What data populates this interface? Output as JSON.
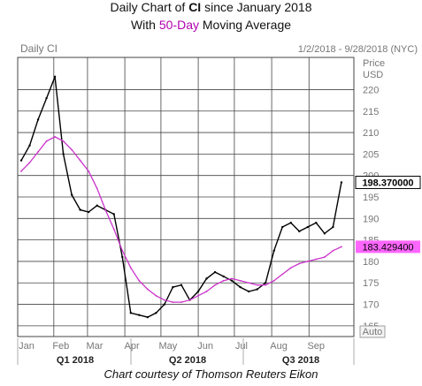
{
  "title_line1": {
    "prefix": "Daily Chart of ",
    "ticker": "CI",
    "suffix": " since January 2018"
  },
  "title_line2": {
    "prefix": "With ",
    "ma_label": "50-Day",
    "suffix": " Moving Average"
  },
  "credit": "Chart courtesy of Thomson Reuters Eikon",
  "colors": {
    "price": "#000000",
    "ma": "#cc33cc",
    "last_box": "#ffffff",
    "ma_box": "#ff66ff",
    "grid": "#444444",
    "axis_text": "#777777"
  },
  "chart_data": {
    "type": "line",
    "chart_label": "Daily CI",
    "date_range": "1/2/2018 - 9/28/2018 (NYC)",
    "y_unit": "Price",
    "y_currency": "USD",
    "yticks": [
      165,
      170,
      175,
      180,
      185,
      190,
      195,
      200,
      205,
      210,
      215,
      220
    ],
    "ylim": [
      162.5,
      227.5
    ],
    "month_labels": [
      "Jan",
      "Feb",
      "Mar",
      "Apr",
      "May",
      "Jun",
      "Jul",
      "Aug",
      "Sep"
    ],
    "quarter_labels": [
      "Q1 2018",
      "Q2 2018",
      "Q3 2018"
    ],
    "last_price": "198.370000",
    "ma_value": "183.429400",
    "autoscale_label": "Auto",
    "x": [
      "2018-01-02",
      "2018-01-09",
      "2018-01-16",
      "2018-01-23",
      "2018-01-30",
      "2018-02-06",
      "2018-02-13",
      "2018-02-20",
      "2018-02-27",
      "2018-03-06",
      "2018-03-13",
      "2018-03-20",
      "2018-03-27",
      "2018-04-03",
      "2018-04-10",
      "2018-04-17",
      "2018-04-24",
      "2018-05-01",
      "2018-05-08",
      "2018-05-15",
      "2018-05-22",
      "2018-05-29",
      "2018-06-05",
      "2018-06-12",
      "2018-06-19",
      "2018-06-26",
      "2018-07-03",
      "2018-07-10",
      "2018-07-17",
      "2018-07-24",
      "2018-07-31",
      "2018-08-07",
      "2018-08-14",
      "2018-08-21",
      "2018-08-28",
      "2018-09-04",
      "2018-09-11",
      "2018-09-18",
      "2018-09-25"
    ],
    "series": [
      {
        "values": [
          203.5,
          207.0,
          213.0,
          218.0,
          223.0,
          205.0,
          195.5,
          192.0,
          191.5,
          193.0,
          192.0,
          191.0,
          181.0,
          168.0,
          167.5,
          167.0,
          168.0,
          170.0,
          174.0,
          174.5,
          171.0,
          173.0,
          176.0,
          177.5,
          176.5,
          175.5,
          174.0,
          173.0,
          173.5,
          175.0,
          182.5,
          188.0,
          189.0,
          187.0,
          188.0,
          189.0,
          186.5,
          188.0,
          198.4
        ]
      },
      {
        "name": "50-Day",
        "values": [
          201.0,
          203.0,
          205.5,
          208.0,
          209.0,
          208.0,
          206.0,
          203.5,
          201.0,
          197.0,
          192.0,
          187.5,
          182.5,
          178.5,
          175.5,
          173.5,
          172.0,
          171.0,
          170.5,
          170.5,
          171.0,
          172.0,
          173.0,
          174.5,
          175.5,
          176.0,
          175.5,
          175.0,
          174.5,
          174.5,
          175.5,
          177.0,
          178.5,
          179.5,
          180.0,
          180.5,
          181.0,
          182.5,
          183.4
        ]
      }
    ]
  }
}
